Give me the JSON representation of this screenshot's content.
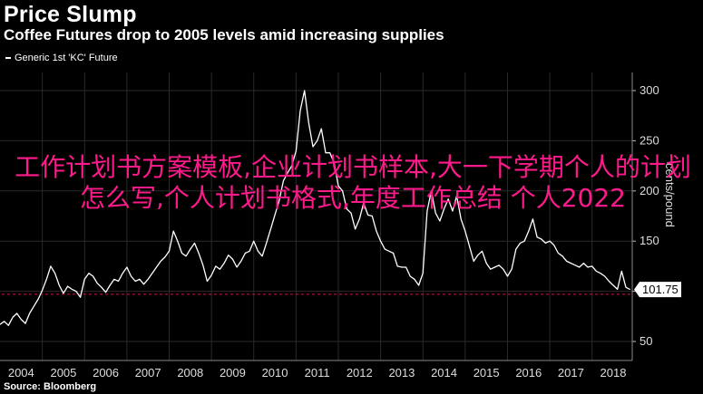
{
  "title": "Price Slump",
  "subtitle": "Coffee Futures drop to 2005 levels amid increasing supplies",
  "legend_label": "Generic 1st 'KC' Future",
  "source": "Source: Bloomberg",
  "overlay_text": "工作计划书方案模板,企业计划书样本,大一下学期个人的计划怎么写,个人计划书格式,年度工作总结 个人2022",
  "colors": {
    "line": "#ffffff",
    "reference": "#c2185b",
    "overlay": "#ff1a8c",
    "background": "#000000"
  },
  "chart_data": {
    "type": "line",
    "title": "Price Slump",
    "subtitle": "Coffee Futures drop to 2005 levels amid increasing supplies",
    "ylabel": "cents/pound",
    "xlabel": "",
    "x_ticks": [
      "2004",
      "2005",
      "2006",
      "2007",
      "2008",
      "2009",
      "2010",
      "2011",
      "2012",
      "2013",
      "2014",
      "2015",
      "2016",
      "2017",
      "2018"
    ],
    "y_ticks": [
      50,
      100,
      150,
      200,
      250,
      300
    ],
    "ylim": [
      45,
      310
    ],
    "xlim": [
      2004.0,
      2018.95
    ],
    "last_value_label": "101.75",
    "reference_line": 97,
    "legend_position": "top-left",
    "series": [
      {
        "name": "Generic 1st 'KC' Future",
        "x": [
          2004.0,
          2004.1,
          2004.2,
          2004.3,
          2004.4,
          2004.5,
          2004.6,
          2004.7,
          2004.8,
          2004.9,
          2005.0,
          2005.1,
          2005.2,
          2005.3,
          2005.4,
          2005.5,
          2005.6,
          2005.7,
          2005.8,
          2005.9,
          2006.0,
          2006.1,
          2006.2,
          2006.3,
          2006.4,
          2006.5,
          2006.6,
          2006.7,
          2006.8,
          2006.9,
          2007.0,
          2007.1,
          2007.2,
          2007.3,
          2007.4,
          2007.5,
          2007.6,
          2007.7,
          2007.8,
          2007.9,
          2008.0,
          2008.1,
          2008.2,
          2008.3,
          2008.4,
          2008.5,
          2008.6,
          2008.7,
          2008.8,
          2008.9,
          2009.0,
          2009.1,
          2009.2,
          2009.3,
          2009.4,
          2009.5,
          2009.6,
          2009.7,
          2009.8,
          2009.9,
          2010.0,
          2010.1,
          2010.2,
          2010.3,
          2010.4,
          2010.5,
          2010.6,
          2010.7,
          2010.8,
          2010.9,
          2011.0,
          2011.1,
          2011.2,
          2011.3,
          2011.4,
          2011.5,
          2011.6,
          2011.7,
          2011.8,
          2011.9,
          2012.0,
          2012.1,
          2012.2,
          2012.3,
          2012.4,
          2012.5,
          2012.6,
          2012.7,
          2012.8,
          2012.9,
          2013.0,
          2013.1,
          2013.2,
          2013.3,
          2013.4,
          2013.5,
          2013.6,
          2013.7,
          2013.8,
          2013.9,
          2014.0,
          2014.1,
          2014.2,
          2014.3,
          2014.4,
          2014.5,
          2014.6,
          2014.7,
          2014.8,
          2014.9,
          2015.0,
          2015.1,
          2015.2,
          2015.3,
          2015.4,
          2015.5,
          2015.6,
          2015.7,
          2015.8,
          2015.9,
          2016.0,
          2016.1,
          2016.2,
          2016.3,
          2016.4,
          2016.5,
          2016.6,
          2016.7,
          2016.8,
          2016.9,
          2017.0,
          2017.1,
          2017.2,
          2017.3,
          2017.4,
          2017.5,
          2017.6,
          2017.7,
          2017.8,
          2017.9,
          2018.0,
          2018.1,
          2018.2,
          2018.3,
          2018.4,
          2018.5,
          2018.6,
          2018.7,
          2018.8,
          2018.9
        ],
        "values": [
          67,
          70,
          66,
          74,
          78,
          72,
          68,
          78,
          85,
          92,
          101,
          112,
          125,
          118,
          106,
          98,
          105,
          102,
          100,
          94,
          112,
          118,
          115,
          108,
          104,
          99,
          106,
          112,
          110,
          118,
          124,
          115,
          110,
          112,
          107,
          112,
          118,
          124,
          130,
          134,
          140,
          160,
          150,
          138,
          135,
          142,
          148,
          138,
          126,
          110,
          116,
          125,
          122,
          128,
          136,
          132,
          124,
          130,
          138,
          140,
          150,
          140,
          135,
          148,
          162,
          176,
          190,
          210,
          218,
          225,
          240,
          280,
          300,
          268,
          244,
          250,
          262,
          238,
          238,
          228,
          205,
          200,
          182,
          178,
          162,
          172,
          188,
          176,
          175,
          160,
          150,
          142,
          140,
          138,
          125,
          124,
          124,
          115,
          112,
          106,
          118,
          180,
          200,
          178,
          170,
          182,
          192,
          180,
          195,
          172,
          160,
          145,
          130,
          136,
          140,
          128,
          122,
          124,
          126,
          122,
          115,
          122,
          142,
          148,
          150,
          160,
          172,
          154,
          152,
          148,
          150,
          146,
          138,
          135,
          130,
          128,
          126,
          124,
          128,
          124,
          125,
          120,
          118,
          115,
          110,
          106,
          102,
          120,
          104,
          101.75
        ]
      }
    ]
  }
}
